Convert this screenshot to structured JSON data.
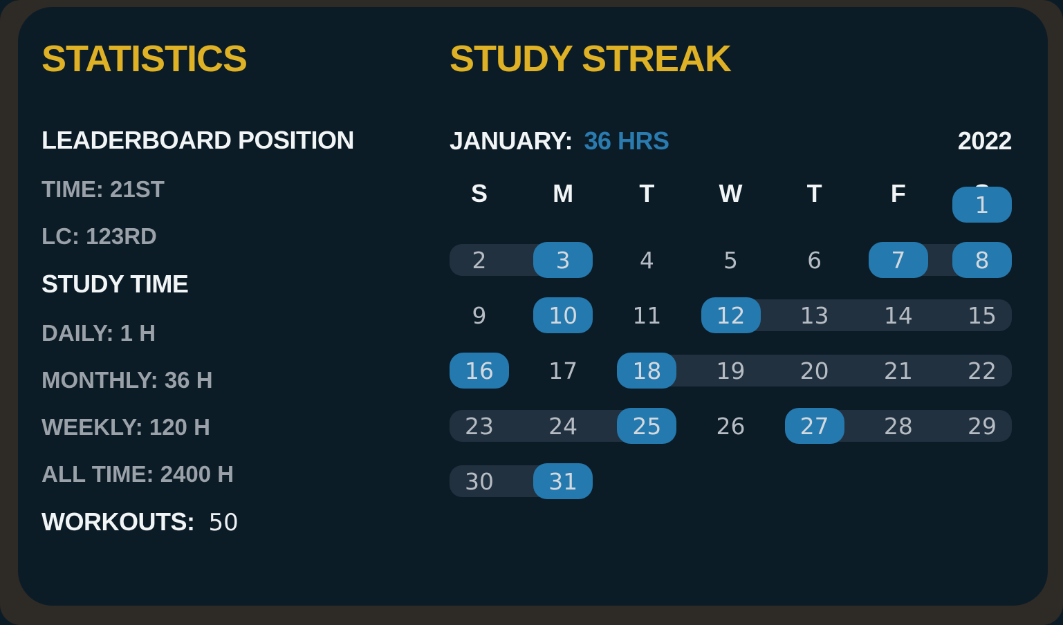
{
  "colors": {
    "card_background": "#0c1c27",
    "frame_background": "#2e2a26",
    "accent_yellow": "#dfb125",
    "accent_blue": "#2479ae",
    "streak_span_navy": "#223140",
    "text_white": "#f2f5f6",
    "text_gray": "#9aa1a8",
    "day_number_gray": "#b6bcc3"
  },
  "statistics": {
    "title": "STATISTICS",
    "leaderboard_heading": "LEADERBOARD POSITION",
    "leaderboard_items": [
      "TIME: 21ST",
      "LC: 123RD"
    ],
    "study_time_heading": "STUDY TIME",
    "study_time_items": [
      "DAILY: 1 H",
      "MONTHLY: 36 H",
      "WEEKLY: 120 H",
      "ALL TIME: 2400 H"
    ],
    "workouts_label": "WORKOUTS:",
    "workouts_value": "50"
  },
  "study_streak": {
    "title": "STUDY STREAK",
    "month_label": "JANUARY:",
    "month_total": "36 HRS",
    "year": "2022",
    "day_headers": [
      "S",
      "M",
      "T",
      "W",
      "T",
      "F",
      "S"
    ],
    "calendar": {
      "month": "January",
      "days_in_month": 31,
      "first_day_column": 7,
      "study_days": [
        1,
        3,
        7,
        8,
        10,
        12,
        16,
        18,
        25,
        27,
        31
      ],
      "streak_spans": [
        [
          2,
          3
        ],
        [
          7,
          8
        ],
        [
          12,
          15
        ],
        [
          18,
          22
        ],
        [
          23,
          25
        ],
        [
          27,
          29
        ],
        [
          30,
          31
        ]
      ]
    }
  }
}
